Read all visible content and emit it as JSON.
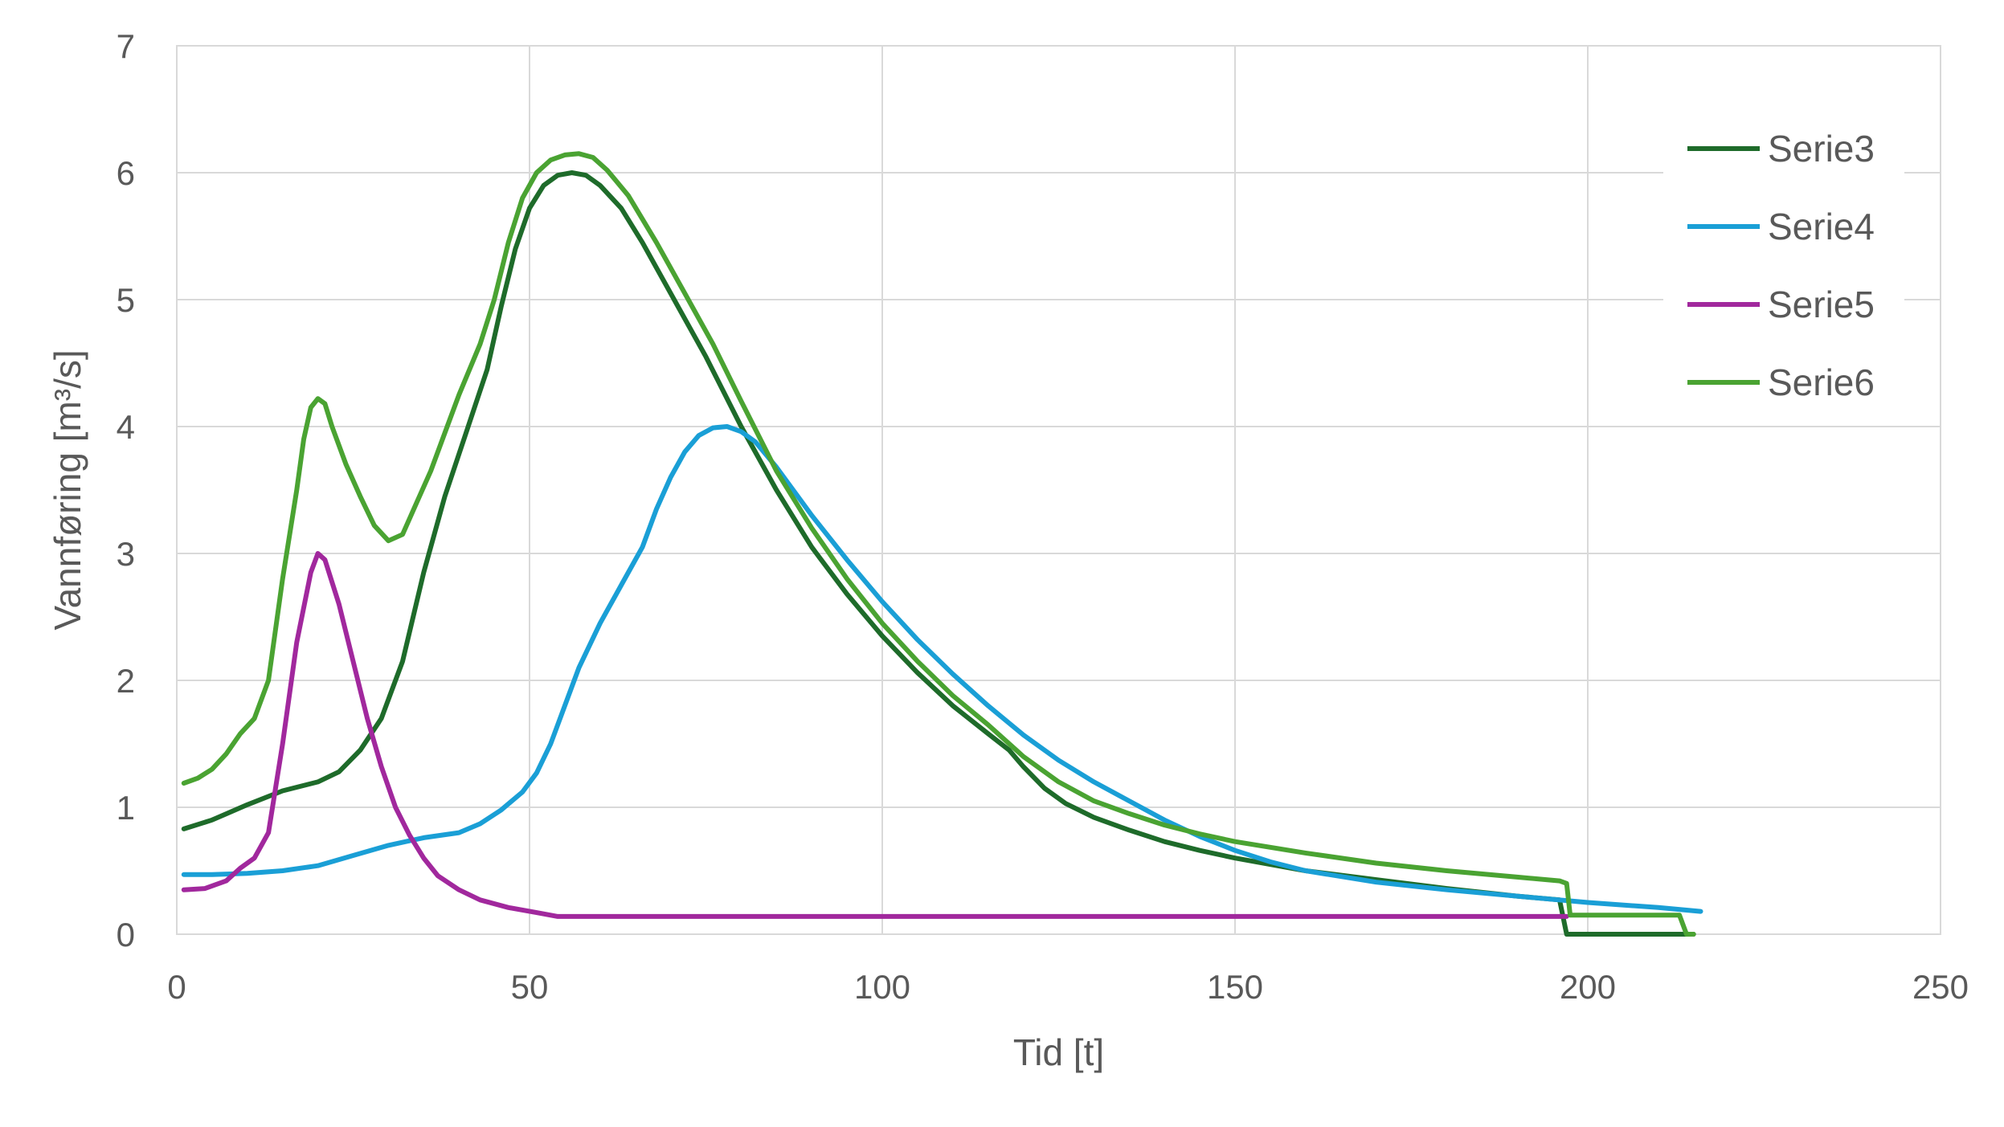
{
  "chart_data": {
    "type": "line",
    "xlabel": "Tid [t]",
    "ylabel": "Vannføring [m³/s]",
    "xlim": [
      0,
      250
    ],
    "ylim": [
      0,
      7
    ],
    "xticks": [
      0,
      50,
      100,
      150,
      200,
      250
    ],
    "yticks": [
      0,
      1,
      2,
      3,
      4,
      5,
      6,
      7
    ],
    "grid": true,
    "legend_position": "top-right",
    "series": [
      {
        "name": "Serie3",
        "color": "#1e6b2a",
        "points": [
          [
            1,
            0.83
          ],
          [
            5,
            0.9
          ],
          [
            10,
            1.02
          ],
          [
            15,
            1.13
          ],
          [
            20,
            1.2
          ],
          [
            23,
            1.28
          ],
          [
            26,
            1.45
          ],
          [
            29,
            1.7
          ],
          [
            32,
            2.15
          ],
          [
            35,
            2.85
          ],
          [
            38,
            3.45
          ],
          [
            41,
            3.95
          ],
          [
            44,
            4.45
          ],
          [
            46,
            4.95
          ],
          [
            48,
            5.4
          ],
          [
            50,
            5.72
          ],
          [
            52,
            5.9
          ],
          [
            54,
            5.98
          ],
          [
            56,
            6.0
          ],
          [
            58,
            5.98
          ],
          [
            60,
            5.9
          ],
          [
            63,
            5.72
          ],
          [
            66,
            5.45
          ],
          [
            70,
            5.05
          ],
          [
            75,
            4.55
          ],
          [
            80,
            4.0
          ],
          [
            85,
            3.5
          ],
          [
            90,
            3.05
          ],
          [
            95,
            2.68
          ],
          [
            100,
            2.35
          ],
          [
            105,
            2.06
          ],
          [
            110,
            1.8
          ],
          [
            115,
            1.58
          ],
          [
            118,
            1.45
          ],
          [
            120,
            1.32
          ],
          [
            123,
            1.15
          ],
          [
            126,
            1.03
          ],
          [
            130,
            0.92
          ],
          [
            135,
            0.82
          ],
          [
            140,
            0.73
          ],
          [
            145,
            0.66
          ],
          [
            150,
            0.6
          ],
          [
            160,
            0.5
          ],
          [
            170,
            0.43
          ],
          [
            180,
            0.36
          ],
          [
            190,
            0.3
          ],
          [
            196,
            0.27
          ],
          [
            197,
            0.0
          ],
          [
            213,
            0.0
          ],
          [
            215,
            0.0
          ]
        ]
      },
      {
        "name": "Serie4",
        "color": "#1a9fd6",
        "points": [
          [
            1,
            0.47
          ],
          [
            5,
            0.47
          ],
          [
            10,
            0.48
          ],
          [
            15,
            0.5
          ],
          [
            20,
            0.54
          ],
          [
            25,
            0.62
          ],
          [
            30,
            0.7
          ],
          [
            35,
            0.76
          ],
          [
            40,
            0.8
          ],
          [
            43,
            0.87
          ],
          [
            46,
            0.98
          ],
          [
            49,
            1.12
          ],
          [
            51,
            1.27
          ],
          [
            53,
            1.5
          ],
          [
            55,
            1.8
          ],
          [
            57,
            2.1
          ],
          [
            60,
            2.45
          ],
          [
            63,
            2.75
          ],
          [
            66,
            3.05
          ],
          [
            68,
            3.35
          ],
          [
            70,
            3.6
          ],
          [
            72,
            3.8
          ],
          [
            74,
            3.93
          ],
          [
            76,
            3.99
          ],
          [
            78,
            4.0
          ],
          [
            80,
            3.96
          ],
          [
            82,
            3.88
          ],
          [
            85,
            3.68
          ],
          [
            90,
            3.3
          ],
          [
            95,
            2.95
          ],
          [
            100,
            2.62
          ],
          [
            105,
            2.32
          ],
          [
            110,
            2.05
          ],
          [
            115,
            1.8
          ],
          [
            120,
            1.57
          ],
          [
            125,
            1.37
          ],
          [
            130,
            1.2
          ],
          [
            135,
            1.05
          ],
          [
            140,
            0.9
          ],
          [
            145,
            0.77
          ],
          [
            150,
            0.66
          ],
          [
            155,
            0.57
          ],
          [
            160,
            0.5
          ],
          [
            170,
            0.41
          ],
          [
            180,
            0.35
          ],
          [
            190,
            0.3
          ],
          [
            200,
            0.25
          ],
          [
            210,
            0.21
          ],
          [
            216,
            0.18
          ]
        ]
      },
      {
        "name": "Serie5",
        "color": "#a1289d",
        "points": [
          [
            1,
            0.35
          ],
          [
            4,
            0.36
          ],
          [
            7,
            0.42
          ],
          [
            9,
            0.52
          ],
          [
            11,
            0.6
          ],
          [
            13,
            0.8
          ],
          [
            15,
            1.5
          ],
          [
            17,
            2.3
          ],
          [
            19,
            2.85
          ],
          [
            20,
            3.0
          ],
          [
            21,
            2.95
          ],
          [
            23,
            2.6
          ],
          [
            25,
            2.15
          ],
          [
            27,
            1.7
          ],
          [
            29,
            1.32
          ],
          [
            31,
            1.0
          ],
          [
            33,
            0.78
          ],
          [
            35,
            0.6
          ],
          [
            37,
            0.46
          ],
          [
            40,
            0.35
          ],
          [
            43,
            0.27
          ],
          [
            47,
            0.21
          ],
          [
            51,
            0.17
          ],
          [
            54,
            0.14
          ],
          [
            60,
            0.14
          ],
          [
            100,
            0.14
          ],
          [
            150,
            0.14
          ],
          [
            196,
            0.14
          ],
          [
            197,
            0.14
          ]
        ]
      },
      {
        "name": "Serie6",
        "color": "#4aa332",
        "points": [
          [
            1,
            1.19
          ],
          [
            3,
            1.23
          ],
          [
            5,
            1.3
          ],
          [
            7,
            1.42
          ],
          [
            9,
            1.58
          ],
          [
            11,
            1.7
          ],
          [
            13,
            2.0
          ],
          [
            15,
            2.8
          ],
          [
            17,
            3.5
          ],
          [
            18,
            3.9
          ],
          [
            19,
            4.15
          ],
          [
            20,
            4.22
          ],
          [
            21,
            4.18
          ],
          [
            22,
            4.0
          ],
          [
            24,
            3.7
          ],
          [
            26,
            3.45
          ],
          [
            28,
            3.22
          ],
          [
            30,
            3.1
          ],
          [
            32,
            3.15
          ],
          [
            34,
            3.4
          ],
          [
            36,
            3.65
          ],
          [
            38,
            3.95
          ],
          [
            40,
            4.25
          ],
          [
            43,
            4.65
          ],
          [
            45,
            5.0
          ],
          [
            47,
            5.45
          ],
          [
            49,
            5.8
          ],
          [
            51,
            6.0
          ],
          [
            53,
            6.1
          ],
          [
            55,
            6.14
          ],
          [
            57,
            6.15
          ],
          [
            59,
            6.12
          ],
          [
            61,
            6.02
          ],
          [
            64,
            5.82
          ],
          [
            68,
            5.45
          ],
          [
            72,
            5.05
          ],
          [
            76,
            4.65
          ],
          [
            80,
            4.2
          ],
          [
            85,
            3.65
          ],
          [
            90,
            3.2
          ],
          [
            95,
            2.8
          ],
          [
            100,
            2.45
          ],
          [
            105,
            2.15
          ],
          [
            110,
            1.88
          ],
          [
            115,
            1.65
          ],
          [
            120,
            1.4
          ],
          [
            125,
            1.2
          ],
          [
            130,
            1.05
          ],
          [
            135,
            0.95
          ],
          [
            140,
            0.86
          ],
          [
            145,
            0.79
          ],
          [
            150,
            0.73
          ],
          [
            160,
            0.64
          ],
          [
            170,
            0.56
          ],
          [
            180,
            0.5
          ],
          [
            190,
            0.45
          ],
          [
            196,
            0.42
          ],
          [
            197,
            0.4
          ],
          [
            197.5,
            0.15
          ],
          [
            213,
            0.15
          ],
          [
            214,
            0.0
          ],
          [
            215,
            0.0
          ]
        ]
      }
    ]
  }
}
